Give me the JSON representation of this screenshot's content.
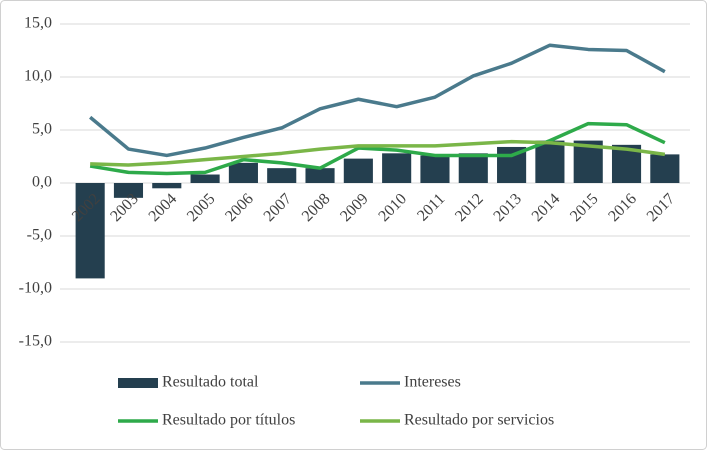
{
  "chart_data": {
    "type": "bar-line",
    "categories": [
      "2002",
      "2003",
      "2004",
      "2005",
      "2006",
      "2007",
      "2008",
      "2009",
      "2010",
      "2011",
      "2012",
      "2013",
      "2014",
      "2015",
      "2016",
      "2017"
    ],
    "series": [
      {
        "name": "Resultado total",
        "type": "bar",
        "color": "#243f4f",
        "values": [
          -9.0,
          -1.4,
          -0.5,
          0.8,
          1.9,
          1.4,
          1.4,
          2.3,
          2.8,
          2.6,
          2.8,
          3.4,
          4.0,
          4.0,
          3.6,
          2.7
        ]
      },
      {
        "name": "Intereses",
        "type": "line",
        "color": "#4a7a8c",
        "values": [
          6.2,
          3.2,
          2.6,
          3.3,
          4.3,
          5.2,
          7.0,
          7.9,
          7.2,
          8.1,
          10.1,
          11.3,
          13.0,
          12.6,
          12.5,
          10.5
        ]
      },
      {
        "name": "Resultado por títulos",
        "type": "line",
        "color": "#2eaa4a",
        "values": [
          1.6,
          1.0,
          0.9,
          1.0,
          2.2,
          1.9,
          1.4,
          3.3,
          3.1,
          2.6,
          2.6,
          2.6,
          4.0,
          5.6,
          5.5,
          3.8
        ]
      },
      {
        "name": "Resultado por servicios",
        "type": "line",
        "color": "#7ab648",
        "values": [
          1.8,
          1.7,
          1.9,
          2.2,
          2.5,
          2.8,
          3.2,
          3.5,
          3.5,
          3.5,
          3.7,
          3.9,
          3.8,
          3.5,
          3.2,
          2.7
        ]
      }
    ],
    "ylim": [
      -15,
      15
    ],
    "yticks": [
      {
        "value": -15,
        "label": "-15,0"
      },
      {
        "value": -10,
        "label": "-10,0"
      },
      {
        "value": -5,
        "label": "-5,0"
      },
      {
        "value": 0,
        "label": "0,0"
      },
      {
        "value": 5,
        "label": "5,0"
      },
      {
        "value": 10,
        "label": "10,0"
      },
      {
        "value": 15,
        "label": "15,0"
      }
    ],
    "grid": true,
    "legend": "bottom"
  }
}
